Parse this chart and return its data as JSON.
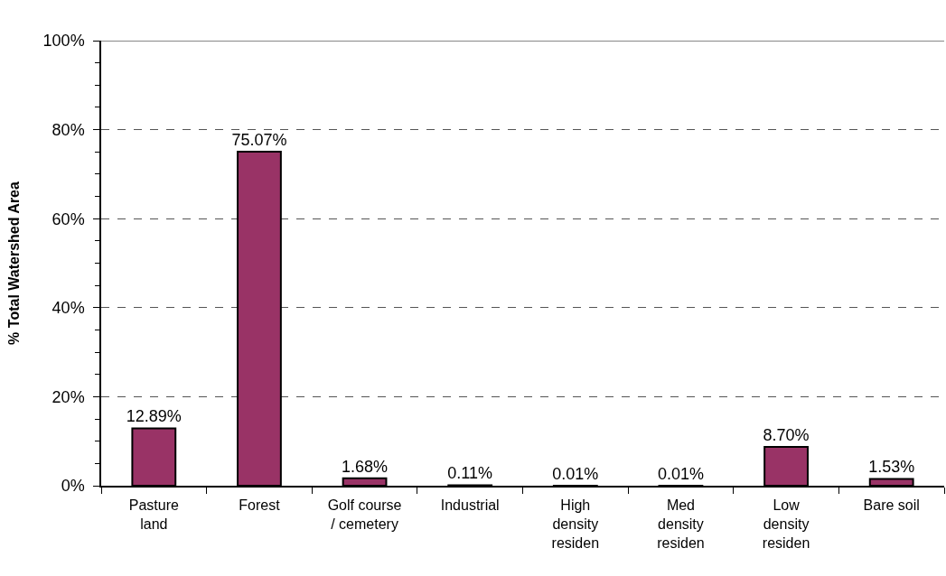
{
  "chart_data": {
    "type": "bar",
    "ylabel": "% Total Watershed Area",
    "categories": [
      "Pasture\nland",
      "Forest",
      "Golf course\n/ cemetery",
      "Industrial",
      "High\ndensity\nresiden",
      "Med\ndensity\nresiden",
      "Low\ndensity\nresiden",
      "Bare soil"
    ],
    "values": [
      12.89,
      75.07,
      1.68,
      0.11,
      0.01,
      0.01,
      8.7,
      1.53
    ],
    "value_labels": [
      "12.89%",
      "75.07%",
      "1.68%",
      "0.11%",
      "0.01%",
      "0.01%",
      "8.70%",
      "1.53%"
    ],
    "color": "#993366",
    "ylim": [
      0,
      100
    ],
    "yticks": [
      {
        "value": 0,
        "label": "0%"
      },
      {
        "value": 5,
        "label": null
      },
      {
        "value": 10,
        "label": null
      },
      {
        "value": 15,
        "label": null
      },
      {
        "value": 20,
        "label": "20%"
      },
      {
        "value": 25,
        "label": null
      },
      {
        "value": 30,
        "label": null
      },
      {
        "value": 35,
        "label": null
      },
      {
        "value": 40,
        "label": "40%"
      },
      {
        "value": 45,
        "label": null
      },
      {
        "value": 50,
        "label": null
      },
      {
        "value": 55,
        "label": null
      },
      {
        "value": 60,
        "label": "60%"
      },
      {
        "value": 65,
        "label": null
      },
      {
        "value": 70,
        "label": null
      },
      {
        "value": 75,
        "label": null
      },
      {
        "value": 80,
        "label": "80%"
      },
      {
        "value": 85,
        "label": null
      },
      {
        "value": 90,
        "label": null
      },
      {
        "value": 95,
        "label": null
      },
      {
        "value": 100,
        "label": "100%"
      }
    ],
    "grid": "y",
    "line_style": "dashed"
  }
}
